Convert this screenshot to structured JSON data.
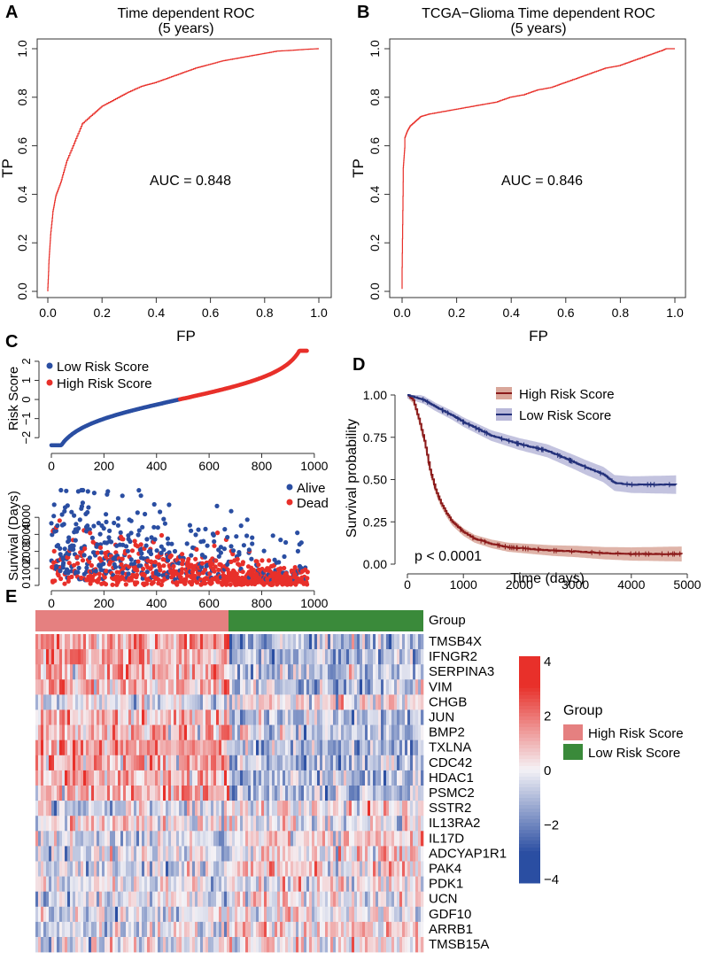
{
  "panels": {
    "A": "A",
    "B": "B",
    "C": "C",
    "D": "D",
    "E": "E"
  },
  "chart_data": [
    {
      "id": "A",
      "type": "line",
      "title": "Time dependent ROC",
      "subtitle": "(5 years)",
      "xlabel": "FP",
      "ylabel": "TP",
      "xlim": [
        0,
        1
      ],
      "ylim": [
        0,
        1
      ],
      "xticks": [
        "0.0",
        "0.2",
        "0.4",
        "0.6",
        "0.8",
        "1.0"
      ],
      "yticks": [
        "0.0",
        "0.2",
        "0.4",
        "0.6",
        "0.8",
        "1.0"
      ],
      "annotation": "AUC =  0.848",
      "color": "#e8302a",
      "x": [
        0,
        0.005,
        0.01,
        0.02,
        0.03,
        0.05,
        0.07,
        0.1,
        0.13,
        0.17,
        0.2,
        0.25,
        0.3,
        0.35,
        0.4,
        0.45,
        0.5,
        0.55,
        0.6,
        0.65,
        0.7,
        0.75,
        0.8,
        0.85,
        0.9,
        0.95,
        1.0
      ],
      "y": [
        0,
        0.13,
        0.22,
        0.33,
        0.39,
        0.45,
        0.53,
        0.61,
        0.69,
        0.73,
        0.76,
        0.79,
        0.82,
        0.845,
        0.86,
        0.88,
        0.9,
        0.92,
        0.935,
        0.95,
        0.96,
        0.97,
        0.98,
        0.99,
        0.993,
        0.997,
        1.0
      ]
    },
    {
      "id": "B",
      "type": "line",
      "title": "TCGA−Glioma Time dependent ROC",
      "subtitle": "(5 years)",
      "xlabel": "FP",
      "ylabel": "TP",
      "xlim": [
        0,
        1
      ],
      "ylim": [
        0,
        1
      ],
      "xticks": [
        "0.0",
        "0.2",
        "0.4",
        "0.6",
        "0.8",
        "1.0"
      ],
      "yticks": [
        "0.0",
        "0.2",
        "0.4",
        "0.6",
        "0.8",
        "1.0"
      ],
      "annotation": "AUC =  0.846",
      "color": "#e8302a",
      "x": [
        0,
        0.0,
        0.005,
        0.01,
        0.01,
        0.02,
        0.03,
        0.05,
        0.07,
        0.1,
        0.15,
        0.2,
        0.25,
        0.3,
        0.35,
        0.4,
        0.45,
        0.5,
        0.55,
        0.6,
        0.65,
        0.7,
        0.75,
        0.8,
        0.85,
        0.9,
        0.95,
        0.97,
        1.0
      ],
      "y": [
        0.01,
        0.04,
        0.51,
        0.59,
        0.63,
        0.66,
        0.68,
        0.7,
        0.72,
        0.73,
        0.74,
        0.75,
        0.76,
        0.77,
        0.78,
        0.8,
        0.81,
        0.83,
        0.84,
        0.86,
        0.88,
        0.9,
        0.92,
        0.93,
        0.95,
        0.97,
        0.99,
        1.0,
        1.0
      ]
    },
    {
      "id": "C-top",
      "type": "scatter",
      "ylabel": "Risk Score",
      "xticks": [
        "0",
        "200",
        "400",
        "600",
        "800",
        "1000"
      ],
      "yticks": [
        "−2",
        "−1",
        "0",
        "1",
        "2"
      ],
      "xlim": [
        0,
        1000
      ],
      "ylim": [
        -2.5,
        2.6
      ],
      "n_points": 975,
      "split_index": 487,
      "series": [
        {
          "name": "Low Risk Score",
          "color": "#2a4ea2"
        },
        {
          "name": "High Risk Score",
          "color": "#e8302a"
        }
      ]
    },
    {
      "id": "C-bottom",
      "type": "scatter",
      "ylabel": "Survival (Days)",
      "xticks": [
        "0",
        "200",
        "400",
        "600",
        "800",
        "1000"
      ],
      "yticks": [
        "0",
        "1000",
        "2000",
        "3000",
        "4000"
      ],
      "xlim": [
        0,
        1000
      ],
      "ylim": [
        0,
        6000
      ],
      "series": [
        {
          "name": "Alive",
          "color": "#2a4ea2"
        },
        {
          "name": "Dead",
          "color": "#e8302a"
        }
      ]
    },
    {
      "id": "D",
      "type": "line",
      "xlabel": "Time (days)",
      "ylabel": "Survival probability",
      "xlim": [
        0,
        5000
      ],
      "ylim": [
        0,
        1
      ],
      "xticks": [
        "0",
        "1000",
        "2000",
        "3000",
        "4000",
        "5000"
      ],
      "yticks": [
        "0.00",
        "0.25",
        "0.50",
        "0.75",
        "1.00"
      ],
      "annotation": "p < 0.0001",
      "series": [
        {
          "name": "High Risk Score",
          "color": "#8b1a1a",
          "band": "#d9a79a",
          "x": [
            0,
            100,
            200,
            300,
            400,
            500,
            600,
            700,
            800,
            1000,
            1200,
            1500,
            1800,
            2200,
            2600,
            3000,
            3500,
            4000,
            4500,
            4900
          ],
          "y": [
            1.0,
            0.97,
            0.86,
            0.73,
            0.56,
            0.44,
            0.36,
            0.3,
            0.25,
            0.19,
            0.15,
            0.12,
            0.1,
            0.09,
            0.08,
            0.075,
            0.065,
            0.06,
            0.06,
            0.06
          ]
        },
        {
          "name": "Low Risk Score",
          "color": "#23307a",
          "band": "#b9b8d9",
          "x": [
            0,
            100,
            300,
            500,
            800,
            1000,
            1500,
            2000,
            2500,
            3000,
            3200,
            3500,
            3700,
            4000,
            4500,
            4800
          ],
          "y": [
            1.0,
            0.99,
            0.97,
            0.93,
            0.88,
            0.84,
            0.76,
            0.71,
            0.67,
            0.6,
            0.57,
            0.53,
            0.48,
            0.47,
            0.47,
            0.47
          ]
        }
      ]
    },
    {
      "id": "E",
      "type": "heatmap",
      "group_label": "Group",
      "legend_title": "Group",
      "groups": [
        {
          "name": "High Risk Score",
          "color": "#e58080"
        },
        {
          "name": "Low Risk Score",
          "color": "#3a8a3a"
        }
      ],
      "genes": [
        "TMSB4X",
        "IFNGR2",
        "SERPINA3",
        "VIM",
        "CHGB",
        "JUN",
        "BMP2",
        "TXLNA",
        "CDC42",
        "HDAC1",
        "PSMC2",
        "SSTR2",
        "IL13RA2",
        "IL17D",
        "ADCYAP1R1",
        "PAK4",
        "PDK1",
        "UCN",
        "GDF10",
        "ARRB1",
        "TMSB15A"
      ],
      "gene_bias_high": [
        1.4,
        1.2,
        1.1,
        1.1,
        -0.3,
        1.0,
        0.9,
        1.3,
        1.3,
        1.2,
        1.1,
        -0.5,
        0.2,
        -0.6,
        -0.3,
        -0.6,
        -0.2,
        -0.4,
        -0.2,
        -0.5,
        -0.2
      ],
      "colorbar_ticks": [
        "4",
        "2",
        "0",
        "−2",
        "−4"
      ],
      "colorbar_range": [
        -4,
        4
      ],
      "colors": {
        "high": "#e8302a",
        "mid": "#f5f3f7",
        "low": "#2a4ea2"
      }
    }
  ]
}
